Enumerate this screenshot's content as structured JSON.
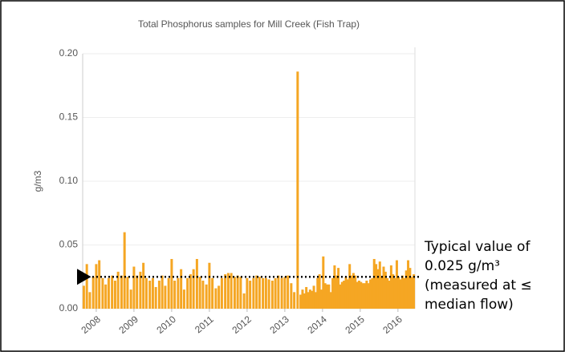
{
  "chart_data": {
    "type": "bar",
    "title": "Total Phosphorus samples for Mill Creek (Fish Trap)",
    "ylabel": "g/m3",
    "color": "#f5a623",
    "grid": true,
    "ylim": [
      0,
      0.2
    ],
    "yticks": [
      {
        "value": 0,
        "label": "0.00"
      },
      {
        "value": 0.05,
        "label": "0.05"
      },
      {
        "value": 0.1,
        "label": "0.10"
      },
      {
        "value": 0.15,
        "label": "0.15"
      },
      {
        "value": 0.2,
        "label": "0.20"
      }
    ],
    "xlim": [
      2007.64,
      2016.45
    ],
    "xticks": [
      2008,
      2009,
      2010,
      2011,
      2012,
      2013,
      2014,
      2015,
      2016
    ],
    "x": [
      2007.67,
      2007.75,
      2007.83,
      2007.92,
      2008.0,
      2008.08,
      2008.17,
      2008.25,
      2008.33,
      2008.42,
      2008.5,
      2008.58,
      2008.67,
      2008.75,
      2008.83,
      2008.92,
      2009.0,
      2009.08,
      2009.17,
      2009.25,
      2009.33,
      2009.42,
      2009.5,
      2009.58,
      2009.67,
      2009.75,
      2009.83,
      2009.92,
      2010.0,
      2010.08,
      2010.17,
      2010.25,
      2010.33,
      2010.42,
      2010.5,
      2010.58,
      2010.67,
      2010.75,
      2010.83,
      2010.92,
      2011.0,
      2011.08,
      2011.17,
      2011.25,
      2011.33,
      2011.42,
      2011.5,
      2011.58,
      2011.67,
      2011.75,
      2011.83,
      2011.92,
      2012.0,
      2012.08,
      2012.17,
      2012.25,
      2012.33,
      2012.42,
      2012.5,
      2012.58,
      2012.67,
      2012.75,
      2012.83,
      2012.92,
      2013.0,
      2013.08,
      2013.17,
      2013.25,
      2013.34,
      2013.42,
      2013.47,
      2013.52,
      2013.57,
      2013.62,
      2013.67,
      2013.72,
      2013.77,
      2013.82,
      2013.87,
      2013.92,
      2013.97,
      2014.02,
      2014.07,
      2014.12,
      2014.17,
      2014.22,
      2014.27,
      2014.32,
      2014.37,
      2014.42,
      2014.47,
      2014.52,
      2014.57,
      2014.62,
      2014.67,
      2014.72,
      2014.77,
      2014.82,
      2014.87,
      2014.92,
      2014.97,
      2015.02,
      2015.07,
      2015.12,
      2015.17,
      2015.22,
      2015.27,
      2015.32,
      2015.37,
      2015.42,
      2015.47,
      2015.52,
      2015.57,
      2015.62,
      2015.67,
      2015.72,
      2015.77,
      2015.82,
      2015.87,
      2015.92,
      2015.97,
      2016.02,
      2016.07,
      2016.12,
      2016.17,
      2016.22,
      2016.27,
      2016.32,
      2016.37,
      2016.42
    ],
    "values": [
      0.018,
      0.035,
      0.013,
      0.025,
      0.035,
      0.038,
      0.024,
      0.019,
      0.024,
      0.026,
      0.022,
      0.029,
      0.026,
      0.06,
      0.025,
      0.015,
      0.033,
      0.026,
      0.029,
      0.036,
      0.024,
      0.022,
      0.024,
      0.017,
      0.022,
      0.026,
      0.018,
      0.024,
      0.039,
      0.022,
      0.024,
      0.031,
      0.015,
      0.024,
      0.027,
      0.031,
      0.039,
      0.025,
      0.022,
      0.019,
      0.036,
      0.024,
      0.016,
      0.018,
      0.024,
      0.027,
      0.028,
      0.028,
      0.025,
      0.026,
      0.025,
      0.012,
      0.024,
      0.022,
      0.024,
      0.026,
      0.025,
      0.024,
      0.024,
      0.023,
      0.022,
      0.024,
      0.026,
      0.024,
      0.025,
      0.026,
      0.02,
      0.013,
      0.186,
      0.011,
      0.015,
      0.012,
      0.017,
      0.013,
      0.015,
      0.014,
      0.018,
      0.013,
      0.024,
      0.027,
      0.015,
      0.041,
      0.02,
      0.019,
      0.019,
      0.013,
      0.024,
      0.034,
      0.026,
      0.032,
      0.019,
      0.021,
      0.022,
      0.025,
      0.023,
      0.035,
      0.026,
      0.028,
      0.026,
      0.021,
      0.022,
      0.021,
      0.02,
      0.02,
      0.022,
      0.02,
      0.023,
      0.024,
      0.039,
      0.035,
      0.031,
      0.037,
      0.025,
      0.033,
      0.029,
      0.024,
      0.022,
      0.034,
      0.027,
      0.024,
      0.038,
      0.025,
      0.023,
      0.026,
      0.024,
      0.03,
      0.038,
      0.032,
      0.025,
      0.027
    ],
    "reference_value": 0.025,
    "annotation": [
      "Typical value of",
      "0.025 g/m³",
      "(measured at ≤",
      "median flow)"
    ]
  }
}
